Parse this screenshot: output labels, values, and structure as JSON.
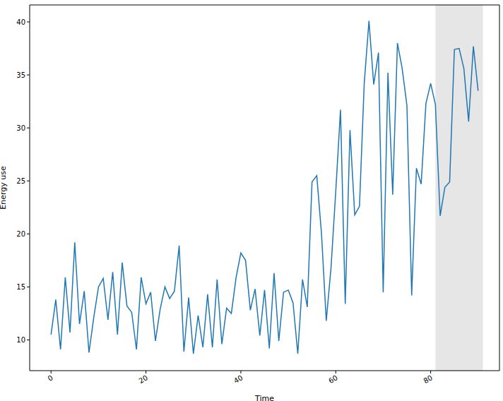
{
  "chart_data": {
    "type": "line",
    "x_label": "Time",
    "y_label": "Energy use",
    "x": [
      0,
      1,
      2,
      3,
      4,
      5,
      6,
      7,
      8,
      9,
      10,
      11,
      12,
      13,
      14,
      15,
      16,
      17,
      18,
      19,
      20,
      21,
      22,
      23,
      24,
      25,
      26,
      27,
      28,
      29,
      30,
      31,
      32,
      33,
      34,
      35,
      36,
      37,
      38,
      39,
      40,
      41,
      42,
      43,
      44,
      45,
      46,
      47,
      48,
      49,
      50,
      51,
      52,
      53,
      54,
      55,
      56,
      57,
      58,
      59,
      60,
      61,
      62,
      63,
      64,
      65,
      66,
      67,
      68,
      69,
      70,
      71,
      72,
      73,
      74,
      75,
      76,
      77,
      78,
      79,
      80,
      81,
      82,
      83,
      84,
      85,
      86,
      87,
      88,
      89,
      90
    ],
    "values": [
      10.5,
      13.8,
      9.1,
      15.9,
      10.7,
      19.2,
      11.5,
      14.6,
      8.8,
      12.1,
      15.0,
      15.8,
      11.9,
      16.4,
      10.5,
      17.3,
      13.2,
      12.6,
      9.1,
      15.9,
      13.4,
      14.5,
      9.9,
      12.9,
      15.0,
      13.9,
      14.6,
      18.9,
      8.9,
      14.0,
      8.7,
      12.3,
      9.3,
      14.3,
      9.3,
      15.7,
      9.6,
      13.0,
      12.5,
      15.9,
      18.2,
      17.5,
      12.8,
      14.8,
      10.4,
      14.7,
      9.2,
      16.3,
      9.9,
      14.5,
      14.7,
      13.5,
      8.7,
      15.7,
      13.1,
      24.9,
      25.5,
      20.0,
      11.8,
      16.8,
      24.0,
      31.7,
      13.4,
      29.8,
      21.8,
      22.6,
      34.2,
      40.1,
      34.1,
      37.1,
      14.5,
      35.2,
      23.7,
      38.0,
      35.6,
      32.1,
      14.2,
      26.2,
      24.7,
      32.3,
      34.2,
      32.2,
      21.7,
      24.4,
      24.9,
      37.4,
      37.5,
      35.6,
      30.6,
      37.7,
      33.5
    ],
    "color": "#1f77b4",
    "xlim": [
      -4.5,
      94.5
    ],
    "xticks": [
      0,
      20,
      40,
      60,
      80
    ],
    "ylim": [
      7.1,
      41.6
    ],
    "yticks": [
      10,
      15,
      20,
      25,
      30,
      35,
      40
    ],
    "shaded_x": [
      81,
      91
    ],
    "grid": false
  }
}
